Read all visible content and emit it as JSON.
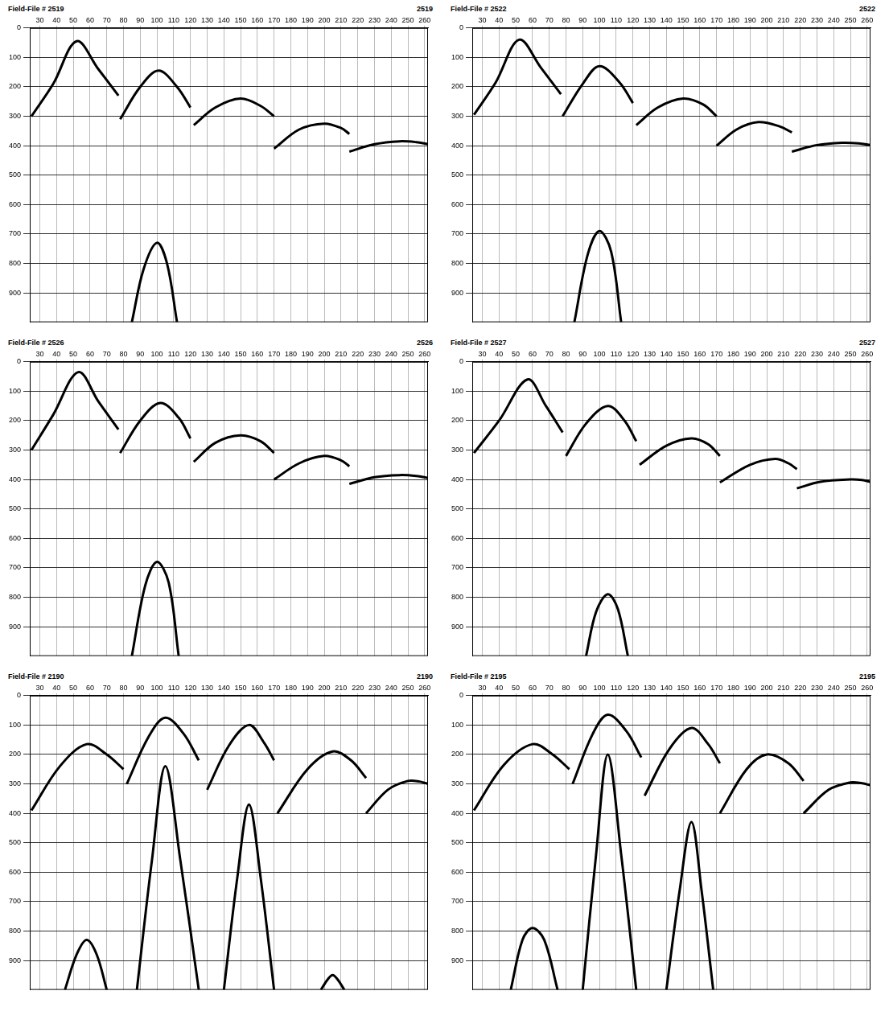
{
  "chart_data": [
    {
      "type": "line",
      "title": "Field-File # 2519",
      "corner_label": "2519",
      "grid": true,
      "xlim": [
        24,
        262
      ],
      "xticks": [
        30,
        40,
        50,
        60,
        70,
        80,
        90,
        100,
        110,
        120,
        130,
        140,
        150,
        160,
        170,
        180,
        190,
        200,
        210,
        220,
        230,
        240,
        250,
        260
      ],
      "ylim": [
        0,
        1000
      ],
      "yticks": [
        0,
        100,
        200,
        300,
        400,
        500,
        600,
        700,
        800,
        900
      ],
      "series": [
        {
          "color": "#000000",
          "x": [
            25,
            38,
            52,
            65,
            77
          ],
          "values": [
            300,
            190,
            45,
            140,
            230
          ]
        },
        {
          "color": "#000000",
          "x": [
            78,
            90,
            101,
            112,
            120
          ],
          "values": [
            310,
            200,
            145,
            200,
            270
          ]
        },
        {
          "color": "#000000",
          "x": [
            122,
            135,
            150,
            162,
            170
          ],
          "values": [
            330,
            270,
            240,
            265,
            300
          ]
        },
        {
          "color": "#000000",
          "x": [
            170,
            185,
            200,
            210,
            215
          ],
          "values": [
            410,
            345,
            325,
            340,
            360
          ]
        },
        {
          "color": "#000000",
          "x": [
            215,
            230,
            245,
            255,
            262
          ],
          "values": [
            420,
            395,
            385,
            388,
            395
          ]
        },
        {
          "color": "#000000",
          "x": [
            85,
            92,
            100,
            106,
            112
          ],
          "values": [
            1000,
            820,
            730,
            800,
            1000
          ]
        }
      ]
    },
    {
      "type": "line",
      "title": "Field-File # 2522",
      "corner_label": "2522",
      "grid": true,
      "xlim": [
        24,
        262
      ],
      "xticks": [
        30,
        40,
        50,
        60,
        70,
        80,
        90,
        100,
        110,
        120,
        130,
        140,
        150,
        160,
        170,
        180,
        190,
        200,
        210,
        220,
        230,
        240,
        250,
        260
      ],
      "ylim": [
        0,
        1000
      ],
      "yticks": [
        0,
        100,
        200,
        300,
        400,
        500,
        600,
        700,
        800,
        900
      ],
      "series": [
        {
          "color": "#000000",
          "x": [
            25,
            38,
            52,
            65,
            77
          ],
          "values": [
            295,
            185,
            40,
            135,
            225
          ]
        },
        {
          "color": "#000000",
          "x": [
            78,
            90,
            100,
            112,
            120
          ],
          "values": [
            300,
            190,
            130,
            185,
            255
          ]
        },
        {
          "color": "#000000",
          "x": [
            122,
            135,
            150,
            162,
            170
          ],
          "values": [
            330,
            270,
            240,
            260,
            300
          ]
        },
        {
          "color": "#000000",
          "x": [
            170,
            182,
            195,
            208,
            215
          ],
          "values": [
            400,
            345,
            320,
            335,
            355
          ]
        },
        {
          "color": "#000000",
          "x": [
            215,
            230,
            245,
            255,
            262
          ],
          "values": [
            420,
            398,
            390,
            392,
            398
          ]
        },
        {
          "color": "#000000",
          "x": [
            85,
            93,
            100,
            107,
            113
          ],
          "values": [
            1000,
            770,
            690,
            760,
            1000
          ]
        }
      ]
    },
    {
      "type": "line",
      "title": "Field-File # 2526",
      "corner_label": "2526",
      "grid": true,
      "xlim": [
        24,
        262
      ],
      "xticks": [
        30,
        40,
        50,
        60,
        70,
        80,
        90,
        100,
        110,
        120,
        130,
        140,
        150,
        160,
        170,
        180,
        190,
        200,
        210,
        220,
        230,
        240,
        250,
        260
      ],
      "ylim": [
        0,
        1000
      ],
      "yticks": [
        0,
        100,
        200,
        300,
        400,
        500,
        600,
        700,
        800,
        900
      ],
      "series": [
        {
          "color": "#000000",
          "x": [
            25,
            38,
            53,
            65,
            77
          ],
          "values": [
            300,
            180,
            35,
            135,
            230
          ]
        },
        {
          "color": "#000000",
          "x": [
            78,
            90,
            102,
            113,
            120
          ],
          "values": [
            310,
            200,
            140,
            190,
            260
          ]
        },
        {
          "color": "#000000",
          "x": [
            122,
            135,
            150,
            162,
            170
          ],
          "values": [
            340,
            275,
            250,
            270,
            310
          ]
        },
        {
          "color": "#000000",
          "x": [
            170,
            185,
            200,
            210,
            215
          ],
          "values": [
            400,
            345,
            320,
            335,
            355
          ]
        },
        {
          "color": "#000000",
          "x": [
            215,
            230,
            245,
            255,
            262
          ],
          "values": [
            415,
            392,
            385,
            388,
            395
          ]
        },
        {
          "color": "#000000",
          "x": [
            85,
            93,
            100,
            107,
            113
          ],
          "values": [
            1000,
            760,
            680,
            750,
            1000
          ]
        }
      ]
    },
    {
      "type": "line",
      "title": "Field-File # 2527",
      "corner_label": "2527",
      "grid": true,
      "xlim": [
        24,
        262
      ],
      "xticks": [
        30,
        40,
        50,
        60,
        70,
        80,
        90,
        100,
        110,
        120,
        130,
        140,
        150,
        160,
        170,
        180,
        190,
        200,
        210,
        220,
        230,
        240,
        250,
        260
      ],
      "ylim": [
        0,
        1000
      ],
      "yticks": [
        0,
        100,
        200,
        300,
        400,
        500,
        600,
        700,
        800,
        900
      ],
      "series": [
        {
          "color": "#000000",
          "x": [
            25,
            40,
            57,
            68,
            78
          ],
          "values": [
            310,
            200,
            60,
            150,
            240
          ]
        },
        {
          "color": "#000000",
          "x": [
            80,
            92,
            105,
            115,
            122
          ],
          "values": [
            320,
            210,
            150,
            200,
            270
          ]
        },
        {
          "color": "#000000",
          "x": [
            124,
            140,
            155,
            165,
            172
          ],
          "values": [
            350,
            285,
            260,
            280,
            320
          ]
        },
        {
          "color": "#000000",
          "x": [
            172,
            190,
            205,
            213,
            218
          ],
          "values": [
            410,
            350,
            330,
            345,
            365
          ]
        },
        {
          "color": "#000000",
          "x": [
            218,
            232,
            250,
            257,
            262
          ],
          "values": [
            430,
            408,
            400,
            402,
            408
          ]
        },
        {
          "color": "#000000",
          "x": [
            92,
            98,
            105,
            111,
            117
          ],
          "values": [
            1000,
            850,
            790,
            840,
            1000
          ]
        }
      ]
    },
    {
      "type": "line",
      "title": "Field-File # 2190",
      "corner_label": "2190",
      "grid": true,
      "xlim": [
        24,
        262
      ],
      "xticks": [
        30,
        40,
        50,
        60,
        70,
        80,
        90,
        100,
        110,
        120,
        130,
        140,
        150,
        160,
        170,
        180,
        190,
        200,
        210,
        220,
        230,
        240,
        250,
        260
      ],
      "ylim": [
        0,
        1000
      ],
      "yticks": [
        0,
        100,
        200,
        300,
        400,
        500,
        600,
        700,
        800,
        900
      ],
      "series": [
        {
          "color": "#000000",
          "x": [
            25,
            42,
            58,
            70,
            80
          ],
          "values": [
            390,
            240,
            165,
            200,
            250
          ]
        },
        {
          "color": "#000000",
          "x": [
            82,
            95,
            105,
            116,
            125
          ],
          "values": [
            300,
            140,
            75,
            130,
            220
          ]
        },
        {
          "color": "#000000",
          "x": [
            130,
            143,
            155,
            164,
            170
          ],
          "values": [
            320,
            170,
            100,
            160,
            220
          ]
        },
        {
          "color": "#000000",
          "x": [
            172,
            190,
            205,
            216,
            225
          ],
          "values": [
            400,
            250,
            190,
            220,
            280
          ]
        },
        {
          "color": "#000000",
          "x": [
            225,
            238,
            250,
            257,
            262
          ],
          "values": [
            400,
            320,
            290,
            292,
            300
          ]
        },
        {
          "color": "#000000",
          "x": [
            45,
            52,
            58,
            64,
            70
          ],
          "values": [
            1000,
            880,
            830,
            880,
            1000
          ]
        },
        {
          "color": "#000000",
          "x": [
            198,
            202,
            205,
            208,
            212
          ],
          "values": [
            1000,
            965,
            950,
            965,
            1000
          ]
        },
        {
          "color": "#000000",
          "x": [
            88,
            97,
            105,
            114,
            125
          ],
          "values": [
            1000,
            560,
            240,
            560,
            1000
          ]
        },
        {
          "color": "#000000",
          "x": [
            140,
            148,
            155,
            162,
            170
          ],
          "values": [
            1000,
            620,
            370,
            620,
            1000
          ]
        }
      ]
    },
    {
      "type": "line",
      "title": "Field-File # 2195",
      "corner_label": "2195",
      "grid": true,
      "xlim": [
        24,
        262
      ],
      "xticks": [
        30,
        40,
        50,
        60,
        70,
        80,
        90,
        100,
        110,
        120,
        130,
        140,
        150,
        160,
        170,
        180,
        190,
        200,
        210,
        220,
        230,
        240,
        250,
        260
      ],
      "ylim": [
        0,
        1000
      ],
      "yticks": [
        0,
        100,
        200,
        300,
        400,
        500,
        600,
        700,
        800,
        900
      ],
      "series": [
        {
          "color": "#000000",
          "x": [
            25,
            43,
            60,
            72,
            82
          ],
          "values": [
            390,
            235,
            165,
            200,
            250
          ]
        },
        {
          "color": "#000000",
          "x": [
            84,
            96,
            105,
            116,
            125
          ],
          "values": [
            300,
            130,
            65,
            120,
            210
          ]
        },
        {
          "color": "#000000",
          "x": [
            127,
            142,
            155,
            165,
            172
          ],
          "values": [
            340,
            180,
            110,
            165,
            230
          ]
        },
        {
          "color": "#000000",
          "x": [
            172,
            188,
            200,
            213,
            222
          ],
          "values": [
            400,
            250,
            200,
            230,
            290
          ]
        },
        {
          "color": "#000000",
          "x": [
            222,
            237,
            250,
            257,
            262
          ],
          "values": [
            400,
            320,
            295,
            298,
            305
          ]
        },
        {
          "color": "#000000",
          "x": [
            47,
            54,
            60,
            67,
            75
          ],
          "values": [
            1000,
            830,
            790,
            830,
            1000
          ]
        },
        {
          "color": "#000000",
          "x": [
            90,
            98,
            105,
            113,
            122
          ],
          "values": [
            1000,
            540,
            200,
            540,
            1000
          ]
        },
        {
          "color": "#000000",
          "x": [
            140,
            148,
            155,
            161,
            168
          ],
          "values": [
            1000,
            660,
            430,
            660,
            1000
          ]
        }
      ]
    }
  ]
}
